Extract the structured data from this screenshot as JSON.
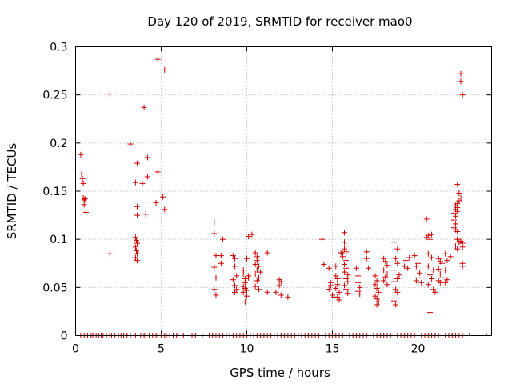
{
  "chart_data": {
    "type": "scatter",
    "title": "Day 120 of 2019, SRMTID for receiver mao0",
    "xlabel": "GPS time / hours",
    "ylabel": "SRMTID / TECUs",
    "xlim": [
      0,
      24.3
    ],
    "ylim": [
      0,
      0.3
    ],
    "x_ticks": [
      0,
      5,
      10,
      15,
      20
    ],
    "x_tick_labels": [
      "0",
      "5",
      "10",
      "15",
      "20"
    ],
    "y_ticks": [
      0,
      0.05,
      0.1,
      0.15,
      0.2,
      0.25,
      0.3
    ],
    "y_tick_labels": [
      "0",
      "0.05",
      "0.1",
      "0.15",
      "0.2",
      "0.25",
      "0.3"
    ],
    "grid": true,
    "marker": "+",
    "color": "#cc0000",
    "series": [
      {
        "name": "SRMTID",
        "points": [
          [
            0.3,
            0.188
          ],
          [
            0.35,
            0.168
          ],
          [
            0.4,
            0.163
          ],
          [
            0.45,
            0.158
          ],
          [
            0.45,
            0.143
          ],
          [
            0.5,
            0.141
          ],
          [
            0.5,
            0.136
          ],
          [
            0.55,
            0.142
          ],
          [
            0.6,
            0.128
          ],
          [
            2.0,
            0.251
          ],
          [
            2.0,
            0.085
          ],
          [
            3.2,
            0.199
          ],
          [
            3.6,
            0.179
          ],
          [
            3.5,
            0.159
          ],
          [
            3.6,
            0.134
          ],
          [
            3.6,
            0.125
          ],
          [
            3.5,
            0.102
          ],
          [
            3.55,
            0.099
          ],
          [
            3.6,
            0.096
          ],
          [
            3.5,
            0.092
          ],
          [
            3.55,
            0.088
          ],
          [
            3.6,
            0.085
          ],
          [
            3.5,
            0.081
          ],
          [
            3.6,
            0.078
          ],
          [
            4.0,
            0.237
          ],
          [
            3.9,
            0.158
          ],
          [
            4.1,
            0.126
          ],
          [
            4.2,
            0.185
          ],
          [
            4.2,
            0.165
          ],
          [
            4.8,
            0.287
          ],
          [
            4.8,
            0.17
          ],
          [
            4.7,
            0.138
          ],
          [
            5.2,
            0.276
          ],
          [
            5.1,
            0.144
          ],
          [
            5.2,
            0.131
          ],
          [
            8.1,
            0.118
          ],
          [
            8.1,
            0.106
          ],
          [
            8.2,
            0.083
          ],
          [
            8.1,
            0.071
          ],
          [
            8.2,
            0.06
          ],
          [
            8.1,
            0.048
          ],
          [
            8.2,
            0.042
          ],
          [
            8.5,
            0.083
          ],
          [
            8.5,
            0.075
          ],
          [
            8.6,
            0.1
          ],
          [
            9.2,
            0.083
          ],
          [
            9.3,
            0.08
          ],
          [
            9.3,
            0.072
          ],
          [
            9.4,
            0.062
          ],
          [
            9.2,
            0.058
          ],
          [
            9.3,
            0.052
          ],
          [
            9.4,
            0.048
          ],
          [
            9.3,
            0.045
          ],
          [
            9.8,
            0.068
          ],
          [
            9.8,
            0.064
          ],
          [
            9.9,
            0.059
          ],
          [
            9.9,
            0.055
          ],
          [
            9.8,
            0.051
          ],
          [
            9.9,
            0.049
          ],
          [
            10.0,
            0.047
          ],
          [
            9.8,
            0.045
          ],
          [
            10.0,
            0.041
          ],
          [
            9.9,
            0.035
          ],
          [
            10.1,
            0.103
          ],
          [
            10.0,
            0.08
          ],
          [
            10.1,
            0.062
          ],
          [
            10.1,
            0.06
          ],
          [
            10.3,
            0.105
          ],
          [
            10.5,
            0.086
          ],
          [
            10.6,
            0.082
          ],
          [
            10.6,
            0.078
          ],
          [
            10.5,
            0.074
          ],
          [
            10.7,
            0.072
          ],
          [
            10.6,
            0.068
          ],
          [
            10.5,
            0.064
          ],
          [
            10.7,
            0.06
          ],
          [
            10.6,
            0.057
          ],
          [
            10.5,
            0.051
          ],
          [
            10.7,
            0.048
          ],
          [
            10.8,
            0.066
          ],
          [
            11.2,
            0.086
          ],
          [
            11.2,
            0.045
          ],
          [
            11.7,
            0.045
          ],
          [
            11.9,
            0.058
          ],
          [
            12.0,
            0.056
          ],
          [
            11.9,
            0.052
          ],
          [
            12.0,
            0.042
          ],
          [
            12.4,
            0.04
          ],
          [
            14.4,
            0.1
          ],
          [
            14.5,
            0.074
          ],
          [
            14.8,
            0.07
          ],
          [
            14.9,
            0.055
          ],
          [
            14.9,
            0.052
          ],
          [
            14.8,
            0.048
          ],
          [
            15.0,
            0.042
          ],
          [
            15.1,
            0.04
          ],
          [
            15.2,
            0.072
          ],
          [
            15.2,
            0.062
          ],
          [
            15.3,
            0.059
          ],
          [
            15.3,
            0.053
          ],
          [
            15.2,
            0.049
          ],
          [
            15.4,
            0.045
          ],
          [
            15.3,
            0.04
          ],
          [
            15.4,
            0.037
          ],
          [
            15.5,
            0.086
          ],
          [
            15.6,
            0.085
          ],
          [
            15.7,
            0.107
          ],
          [
            15.7,
            0.097
          ],
          [
            15.8,
            0.093
          ],
          [
            15.7,
            0.09
          ],
          [
            15.8,
            0.087
          ],
          [
            15.6,
            0.082
          ],
          [
            15.8,
            0.078
          ],
          [
            15.7,
            0.074
          ],
          [
            15.8,
            0.07
          ],
          [
            15.7,
            0.066
          ],
          [
            15.9,
            0.063
          ],
          [
            15.8,
            0.059
          ],
          [
            15.9,
            0.056
          ],
          [
            15.7,
            0.052
          ],
          [
            15.8,
            0.048
          ],
          [
            15.9,
            0.044
          ],
          [
            16.4,
            0.07
          ],
          [
            16.5,
            0.062
          ],
          [
            16.5,
            0.055
          ],
          [
            16.6,
            0.05
          ],
          [
            16.5,
            0.046
          ],
          [
            16.6,
            0.043
          ],
          [
            17.0,
            0.087
          ],
          [
            17.0,
            0.08
          ],
          [
            17.1,
            0.07
          ],
          [
            17.5,
            0.062
          ],
          [
            17.6,
            0.057
          ],
          [
            17.5,
            0.053
          ],
          [
            17.6,
            0.049
          ],
          [
            17.7,
            0.045
          ],
          [
            17.5,
            0.041
          ],
          [
            17.6,
            0.038
          ],
          [
            17.7,
            0.035
          ],
          [
            17.6,
            0.032
          ],
          [
            18.0,
            0.08
          ],
          [
            18.1,
            0.077
          ],
          [
            18.2,
            0.073
          ],
          [
            18.0,
            0.068
          ],
          [
            18.2,
            0.064
          ],
          [
            18.1,
            0.061
          ],
          [
            18.0,
            0.057
          ],
          [
            18.2,
            0.053
          ],
          [
            18.6,
            0.097
          ],
          [
            18.8,
            0.09
          ],
          [
            18.7,
            0.08
          ],
          [
            18.8,
            0.075
          ],
          [
            18.6,
            0.068
          ],
          [
            18.9,
            0.063
          ],
          [
            18.8,
            0.059
          ],
          [
            18.6,
            0.056
          ],
          [
            18.7,
            0.048
          ],
          [
            18.8,
            0.045
          ],
          [
            18.6,
            0.036
          ],
          [
            18.7,
            0.032
          ],
          [
            19.3,
            0.078
          ],
          [
            19.5,
            0.081
          ],
          [
            19.2,
            0.072
          ],
          [
            19.4,
            0.07
          ],
          [
            19.8,
            0.083
          ],
          [
            20.0,
            0.075
          ],
          [
            19.9,
            0.072
          ],
          [
            20.1,
            0.065
          ],
          [
            20.0,
            0.06
          ],
          [
            19.9,
            0.057
          ],
          [
            20.2,
            0.055
          ],
          [
            20.5,
            0.121
          ],
          [
            20.6,
            0.104
          ],
          [
            20.5,
            0.102
          ],
          [
            20.8,
            0.105
          ],
          [
            20.7,
            0.1
          ],
          [
            20.6,
            0.085
          ],
          [
            20.8,
            0.081
          ],
          [
            20.6,
            0.072
          ],
          [
            20.9,
            0.068
          ],
          [
            20.7,
            0.063
          ],
          [
            20.8,
            0.059
          ],
          [
            20.6,
            0.053
          ],
          [
            20.9,
            0.048
          ],
          [
            21.0,
            0.045
          ],
          [
            20.7,
            0.024
          ],
          [
            21.2,
            0.08
          ],
          [
            21.3,
            0.077
          ],
          [
            21.4,
            0.075
          ],
          [
            21.2,
            0.069
          ],
          [
            21.3,
            0.064
          ],
          [
            21.4,
            0.06
          ],
          [
            21.2,
            0.057
          ],
          [
            21.3,
            0.055
          ],
          [
            21.6,
            0.085
          ],
          [
            21.7,
            0.078
          ],
          [
            21.6,
            0.068
          ],
          [
            21.7,
            0.058
          ],
          [
            21.6,
            0.055
          ],
          [
            21.9,
            0.082
          ],
          [
            22.1,
            0.112
          ],
          [
            22.2,
            0.116
          ],
          [
            22.1,
            0.12
          ],
          [
            22.2,
            0.124
          ],
          [
            22.1,
            0.127
          ],
          [
            22.3,
            0.129
          ],
          [
            22.2,
            0.131
          ],
          [
            22.3,
            0.133
          ],
          [
            22.2,
            0.135
          ],
          [
            22.3,
            0.137
          ],
          [
            22.4,
            0.14
          ],
          [
            22.2,
            0.11
          ],
          [
            22.3,
            0.108
          ],
          [
            22.3,
            0.1
          ],
          [
            22.4,
            0.097
          ],
          [
            22.2,
            0.093
          ],
          [
            22.3,
            0.09
          ],
          [
            22.3,
            0.157
          ],
          [
            22.4,
            0.148
          ],
          [
            22.5,
            0.143
          ],
          [
            22.5,
            0.272
          ],
          [
            22.5,
            0.264
          ],
          [
            22.6,
            0.25
          ],
          [
            22.5,
            0.098
          ],
          [
            22.6,
            0.096
          ],
          [
            22.6,
            0.092
          ],
          [
            22.6,
            0.075
          ],
          [
            22.6,
            0.072
          ]
        ],
        "zero_points_x": [
          0.3,
          0.5,
          0.7,
          0.9,
          1.0,
          1.2,
          1.35,
          1.5,
          1.6,
          1.8,
          2.0,
          2.1,
          2.3,
          2.5,
          2.65,
          2.8,
          3.0,
          3.2,
          3.5,
          3.8,
          4.0,
          4.1,
          4.3,
          4.5,
          4.7,
          4.8,
          5.0,
          5.2,
          5.3,
          5.5,
          5.7,
          5.9,
          6.3,
          6.8,
          7.0,
          7.4,
          7.8,
          8.0,
          8.2,
          8.4,
          8.6,
          8.8,
          9.0,
          9.2,
          9.4,
          9.6,
          9.8,
          10.0,
          10.2,
          10.4,
          10.6,
          10.8,
          11.0,
          11.2,
          11.4,
          11.6,
          11.8,
          12.0,
          12.2,
          12.4,
          12.6,
          12.8,
          13.0,
          13.2,
          13.4,
          13.6,
          13.8,
          14.0,
          14.2,
          14.4,
          14.6,
          14.8,
          15.0,
          15.2,
          15.4,
          15.6,
          15.8,
          16.0,
          16.2,
          16.4,
          16.6,
          16.8,
          17.0,
          17.2,
          17.4,
          17.6,
          17.8,
          18.0,
          18.2,
          18.4,
          18.6,
          18.8,
          19.0,
          19.2,
          19.4,
          19.6,
          19.8,
          20.0,
          20.2,
          20.4,
          20.6,
          20.8,
          21.0,
          21.2,
          21.4,
          21.6,
          21.8,
          22.0,
          22.2,
          22.4,
          22.6,
          22.8
        ]
      }
    ]
  }
}
